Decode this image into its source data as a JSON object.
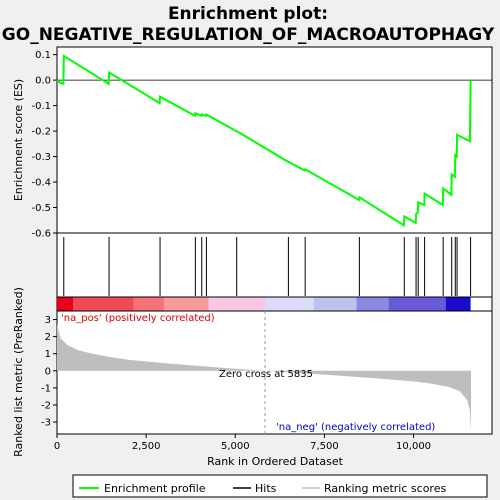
{
  "chart_data": {
    "type": "line",
    "title_line1": "Enrichment plot:",
    "title_line2": "GO_NEGATIVE_REGULATION_OF_MACROAUTOPHAGY",
    "panels": {
      "es": {
        "ylabel": "Enrichment score (ES)",
        "ylim": [
          -0.6,
          0.13
        ],
        "yticks": [
          0.1,
          0.0,
          -0.1,
          -0.2,
          -0.3,
          -0.4,
          -0.5,
          -0.6
        ],
        "ytick_labels": [
          "0.1",
          "0.0",
          "-0.1",
          "-0.2",
          "-0.3",
          "-0.4",
          "-0.5",
          "-0.6"
        ],
        "series": {
          "name": "Enrichment profile",
          "color": "#00ff00",
          "points": [
            [
              0,
              0
            ],
            [
              80,
              -0.01
            ],
            [
              180,
              -0.015
            ],
            [
              190,
              0.095
            ],
            [
              1450,
              -0.015
            ],
            [
              1460,
              0.03
            ],
            [
              2880,
              -0.09
            ],
            [
              2890,
              -0.065
            ],
            [
              3870,
              -0.14
            ],
            [
              3880,
              -0.13
            ],
            [
              4050,
              -0.14
            ],
            [
              4060,
              -0.135
            ],
            [
              4180,
              -0.14
            ],
            [
              4190,
              -0.135
            ],
            [
              5030,
              -0.2
            ],
            [
              5040,
              -0.2
            ],
            [
              6480,
              -0.32
            ],
            [
              6490,
              -0.32
            ],
            [
              6950,
              -0.355
            ],
            [
              6960,
              -0.35
            ],
            [
              8470,
              -0.47
            ],
            [
              8480,
              -0.46
            ],
            [
              9730,
              -0.57
            ],
            [
              9740,
              -0.535
            ],
            [
              10060,
              -0.56
            ],
            [
              10070,
              -0.525
            ],
            [
              10120,
              -0.52
            ],
            [
              10130,
              -0.48
            ],
            [
              10300,
              -0.49
            ],
            [
              10310,
              -0.445
            ],
            [
              10820,
              -0.49
            ],
            [
              10830,
              -0.425
            ],
            [
              11060,
              -0.45
            ],
            [
              11070,
              -0.37
            ],
            [
              11160,
              -0.38
            ],
            [
              11170,
              -0.295
            ],
            [
              11210,
              -0.3
            ],
            [
              11220,
              -0.215
            ],
            [
              11580,
              -0.24
            ],
            [
              11600,
              0
            ]
          ]
        }
      },
      "hits": {
        "legend": "Hits",
        "positions": [
          190,
          1460,
          2890,
          3880,
          4060,
          4190,
          5040,
          6490,
          6960,
          8480,
          9740,
          10070,
          10130,
          10310,
          10830,
          11070,
          11170,
          11220,
          11600
        ]
      },
      "rank_bar": {
        "segments": [
          {
            "from": 0,
            "to": 450,
            "color": "#e8001c"
          },
          {
            "from": 450,
            "to": 2150,
            "color": "#f04a55"
          },
          {
            "from": 2150,
            "to": 3000,
            "color": "#f4737a"
          },
          {
            "from": 3000,
            "to": 4250,
            "color": "#f89a9c"
          },
          {
            "from": 4250,
            "to": 5850,
            "color": "#fbc6e6"
          },
          {
            "from": 5850,
            "to": 7200,
            "color": "#dcdcf8"
          },
          {
            "from": 7200,
            "to": 8400,
            "color": "#c0c0f0"
          },
          {
            "from": 8400,
            "to": 9300,
            "color": "#8a8ae4"
          },
          {
            "from": 9300,
            "to": 10900,
            "color": "#6a5ad8"
          },
          {
            "from": 10900,
            "to": 11600,
            "color": "#1a0acc"
          }
        ]
      },
      "metric": {
        "ylabel": "Ranked list metric (PreRanked)",
        "ylim": [
          -3.7,
          3.5
        ],
        "yticks": [
          3,
          2,
          1,
          0,
          -1,
          -2,
          -3
        ],
        "ytick_labels": [
          "3",
          "2",
          "1",
          "0",
          "-1",
          "-2",
          "-3"
        ],
        "fill_color": "#bebebe",
        "series_name": "Ranking metric scores",
        "points": [
          [
            0,
            2.7
          ],
          [
            100,
            1.9
          ],
          [
            300,
            1.5
          ],
          [
            600,
            1.2
          ],
          [
            1000,
            1.0
          ],
          [
            1500,
            0.8
          ],
          [
            2000,
            0.65
          ],
          [
            3000,
            0.45
          ],
          [
            4000,
            0.28
          ],
          [
            5000,
            0.12
          ],
          [
            5835,
            0
          ],
          [
            7000,
            -0.15
          ],
          [
            8000,
            -0.3
          ],
          [
            9000,
            -0.45
          ],
          [
            10000,
            -0.62
          ],
          [
            10500,
            -0.75
          ],
          [
            11000,
            -0.95
          ],
          [
            11300,
            -1.2
          ],
          [
            11500,
            -1.7
          ],
          [
            11580,
            -2.3
          ],
          [
            11610,
            -3.6
          ]
        ],
        "zero_cross_label": "Zero cross at 5835",
        "zero_cross_at": 5835,
        "pos_label": "'na_pos' (positively correlated)",
        "neg_label": "'na_neg' (negatively correlated)",
        "pos_color": "#dd0000",
        "neg_color": "#0000cc"
      }
    },
    "xlabel": "Rank in Ordered Dataset",
    "xlim": [
      0,
      12200
    ],
    "xticks": [
      0,
      2500,
      5000,
      7500,
      10000
    ],
    "xtick_labels": [
      "0",
      "2,500",
      "5,000",
      "7,500",
      "10,000"
    ],
    "legend": [
      {
        "name": "Enrichment profile",
        "color": "#00ff00"
      },
      {
        "name": "Hits",
        "color": "#000000"
      },
      {
        "name": "Ranking metric scores",
        "color": "#bebebe"
      }
    ]
  }
}
